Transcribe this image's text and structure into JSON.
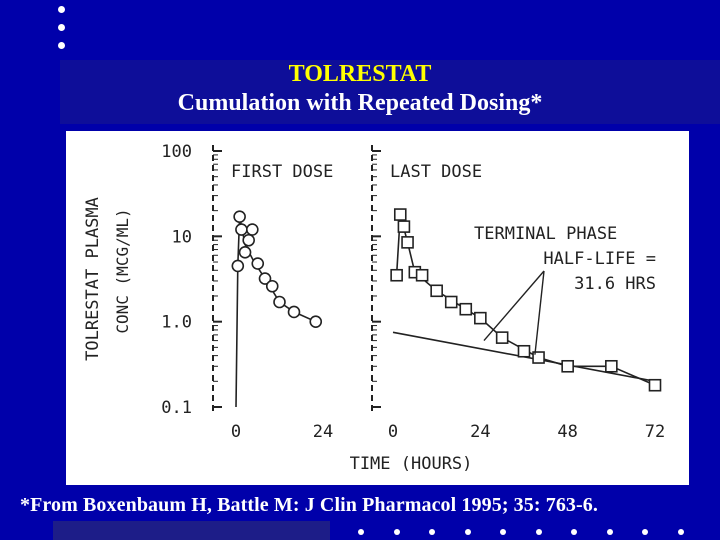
{
  "slide": {
    "title_line1": "TOLRESTAT",
    "title_line2": "Cumulation with Repeated Dosing*",
    "footnote": "*From Boxenbaum H, Battle M: J Clin Pharmacol 1995; 35: 763-6.",
    "colors": {
      "background": "#0000aa",
      "title_line1": "#ffff00",
      "title_line2": "#ffffff",
      "plot_bg": "#ffffff",
      "ink": "#222222"
    }
  },
  "chart_data": {
    "type": "scatter",
    "yscale": "log",
    "ylim": [
      0.1,
      100
    ],
    "yticks": [
      {
        "value": 100,
        "label": "100"
      },
      {
        "value": 10,
        "label": "10"
      },
      {
        "value": 1,
        "label": "1.0"
      },
      {
        "value": 0.1,
        "label": "0.1"
      }
    ],
    "ylabel_line1": "TOLRESTAT PLASMA",
    "ylabel_line2": "CONC (MCG/ML)",
    "xlabel": "TIME (HOURS)",
    "panels": [
      {
        "label": "FIRST DOSE",
        "xlim": [
          0,
          24
        ],
        "xticks": [
          {
            "value": 0,
            "label": "0"
          },
          {
            "value": 24,
            "label": "24"
          }
        ],
        "marker": "circle",
        "points": [
          {
            "x": 0.5,
            "y": 4.5
          },
          {
            "x": 1,
            "y": 17
          },
          {
            "x": 1.5,
            "y": 12
          },
          {
            "x": 2.5,
            "y": 6.5
          },
          {
            "x": 3.5,
            "y": 9
          },
          {
            "x": 4.5,
            "y": 12
          },
          {
            "x": 6,
            "y": 4.8
          },
          {
            "x": 8,
            "y": 3.2
          },
          {
            "x": 10,
            "y": 2.6
          },
          {
            "x": 12,
            "y": 1.7
          },
          {
            "x": 16,
            "y": 1.3
          },
          {
            "x": 22,
            "y": 1.0
          }
        ],
        "curve": [
          {
            "x": 0,
            "y": 0.1
          },
          {
            "x": 0.5,
            "y": 4.5
          },
          {
            "x": 1,
            "y": 17
          },
          {
            "x": 2.5,
            "y": 8
          },
          {
            "x": 5,
            "y": 5
          },
          {
            "x": 8,
            "y": 3.2
          },
          {
            "x": 12,
            "y": 1.7
          },
          {
            "x": 16,
            "y": 1.3
          },
          {
            "x": 22,
            "y": 1.0
          }
        ]
      },
      {
        "label": "LAST DOSE",
        "xlim": [
          0,
          72
        ],
        "xticks": [
          {
            "value": 0,
            "label": "0"
          },
          {
            "value": 24,
            "label": "24"
          },
          {
            "value": 48,
            "label": "48"
          },
          {
            "value": 72,
            "label": "72"
          }
        ],
        "marker": "square",
        "points": [
          {
            "x": 1,
            "y": 3.5
          },
          {
            "x": 2,
            "y": 18
          },
          {
            "x": 3,
            "y": 13
          },
          {
            "x": 4,
            "y": 8.5
          },
          {
            "x": 6,
            "y": 3.8
          },
          {
            "x": 8,
            "y": 3.5
          },
          {
            "x": 12,
            "y": 2.3
          },
          {
            "x": 16,
            "y": 1.7
          },
          {
            "x": 20,
            "y": 1.4
          },
          {
            "x": 24,
            "y": 1.1
          },
          {
            "x": 30,
            "y": 0.65
          },
          {
            "x": 36,
            "y": 0.45
          },
          {
            "x": 40,
            "y": 0.38
          },
          {
            "x": 48,
            "y": 0.3
          },
          {
            "x": 60,
            "y": 0.3
          },
          {
            "x": 72,
            "y": 0.18
          }
        ],
        "curve": [
          {
            "x": 1,
            "y": 3.5
          },
          {
            "x": 2,
            "y": 18
          },
          {
            "x": 4,
            "y": 8.5
          },
          {
            "x": 6,
            "y": 3.8
          },
          {
            "x": 12,
            "y": 2.3
          },
          {
            "x": 20,
            "y": 1.4
          },
          {
            "x": 24,
            "y": 1.1
          },
          {
            "x": 30,
            "y": 0.65
          },
          {
            "x": 40,
            "y": 0.38
          },
          {
            "x": 48,
            "y": 0.3
          },
          {
            "x": 60,
            "y": 0.3
          },
          {
            "x": 72,
            "y": 0.18
          }
        ],
        "terminal_line": [
          {
            "x": 0,
            "y": 0.75
          },
          {
            "x": 72,
            "y": 0.2
          }
        ],
        "annotation": {
          "lines": [
            "TERMINAL PHASE",
            "HALF-LIFE =",
            "31.6 HRS"
          ],
          "arrow_targets": [
            {
              "x": 25,
              "y": 0.6
            },
            {
              "x": 39,
              "y": 0.41
            }
          ]
        }
      }
    ]
  }
}
